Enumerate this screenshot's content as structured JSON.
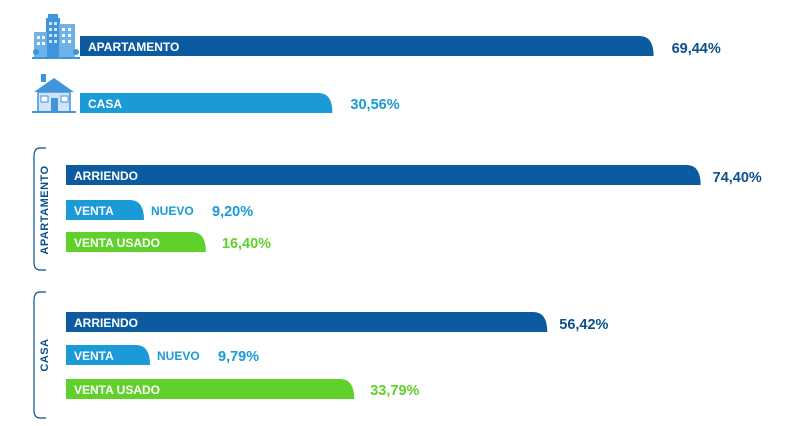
{
  "colors": {
    "dark_blue": "#0c5aa0",
    "light_blue": "#1a9ad6",
    "green": "#5fd12a",
    "icon_blue": "#3f94dc",
    "icon_light": "#cfe4f8"
  },
  "chart_data": [
    {
      "type": "bar",
      "orientation": "horizontal",
      "categories": [
        "APARTAMENTO",
        "CASA"
      ],
      "values": [
        69.44,
        30.56
      ],
      "value_labels": [
        "69,44%",
        "30,56%"
      ],
      "icons": [
        "apartment-building-icon",
        "house-icon"
      ],
      "colors": [
        "#0c5aa0",
        "#1a9ad6"
      ],
      "xlim": [
        0,
        100
      ]
    },
    {
      "type": "bar",
      "orientation": "horizontal",
      "group_label": "APARTAMENTO",
      "categories": [
        "ARRIENDO",
        "VENTA",
        "VENTA USADO"
      ],
      "sublabels": [
        "",
        "NUEVO",
        ""
      ],
      "values": [
        74.4,
        9.2,
        16.4
      ],
      "value_labels": [
        "74,40%",
        "9,20%",
        "16,40%"
      ],
      "colors": [
        "#0c5aa0",
        "#1a9ad6",
        "#5fd12a"
      ],
      "xlim": [
        0,
        100
      ]
    },
    {
      "type": "bar",
      "orientation": "horizontal",
      "group_label": "CASA",
      "categories": [
        "ARRIENDO",
        "VENTA",
        "VENTA USADO"
      ],
      "sublabels": [
        "",
        "NUEVO",
        ""
      ],
      "values": [
        56.42,
        9.79,
        33.79
      ],
      "value_labels": [
        "56,42%",
        "9,79%",
        "33,79%"
      ],
      "colors": [
        "#0c5aa0",
        "#1a9ad6",
        "#5fd12a"
      ],
      "xlim": [
        0,
        100
      ]
    }
  ]
}
